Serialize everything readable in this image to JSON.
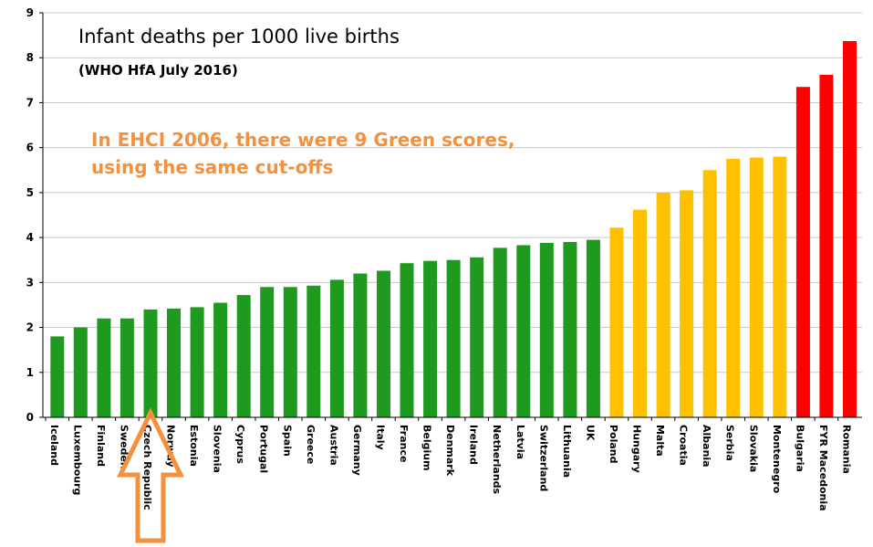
{
  "chart_data": {
    "type": "bar",
    "title": "Infant deaths per 1000 live births",
    "subtitle": "(WHO HfA July 2016)",
    "annotation_lines": [
      "In EHCI 2006, there were 9 Green scores,",
      "using the same cut-offs"
    ],
    "ylim": [
      0,
      9
    ],
    "yticks": [
      "0",
      "1",
      "2",
      "3",
      "4",
      "5",
      "6",
      "7",
      "8",
      "9"
    ],
    "grid": true,
    "categories": [
      "Iceland",
      "Luxembourg",
      "Finland",
      "Sweden",
      "Czech Republic",
      "Norway",
      "Estonia",
      "Slovenia",
      "Cyprus",
      "Portugal",
      "Spain",
      "Greece",
      "Austria",
      "Germany",
      "Italy",
      "France",
      "Belgium",
      "Denmark",
      "Ireland",
      "Netherlands",
      "Latvia",
      "Switzerland",
      "Lithuania",
      "UK",
      "Poland",
      "Hungary",
      "Malta",
      "Croatia",
      "Albania",
      "Serbia",
      "Slovakia",
      "Montenegro",
      "Bulgaria",
      "FYR Macedonia",
      "Romania"
    ],
    "values": [
      1.8,
      2.0,
      2.2,
      2.2,
      2.4,
      2.42,
      2.45,
      2.55,
      2.72,
      2.9,
      2.9,
      2.93,
      3.06,
      3.2,
      3.26,
      3.43,
      3.48,
      3.5,
      3.56,
      3.77,
      3.83,
      3.88,
      3.9,
      3.95,
      4.22,
      4.62,
      5.0,
      5.05,
      5.5,
      5.75,
      5.78,
      5.8,
      7.35,
      7.62,
      8.37
    ],
    "bar_colors": [
      "green",
      "green",
      "green",
      "green",
      "green",
      "green",
      "green",
      "green",
      "green",
      "green",
      "green",
      "green",
      "green",
      "green",
      "green",
      "green",
      "green",
      "green",
      "green",
      "green",
      "green",
      "green",
      "green",
      "green",
      "yellow",
      "yellow",
      "yellow",
      "yellow",
      "yellow",
      "yellow",
      "yellow",
      "yellow",
      "red",
      "red",
      "red"
    ],
    "colors": {
      "green": "#1e9a1e",
      "yellow": "#ffc000",
      "red": "#ff0000",
      "annotation": "#f5913c",
      "arrow_stroke": "#f5913c",
      "grid": "#c8c8c8",
      "axis": "#000000"
    },
    "highlight": {
      "category": "Czech Republic",
      "marker": "up-arrow-outline"
    }
  }
}
